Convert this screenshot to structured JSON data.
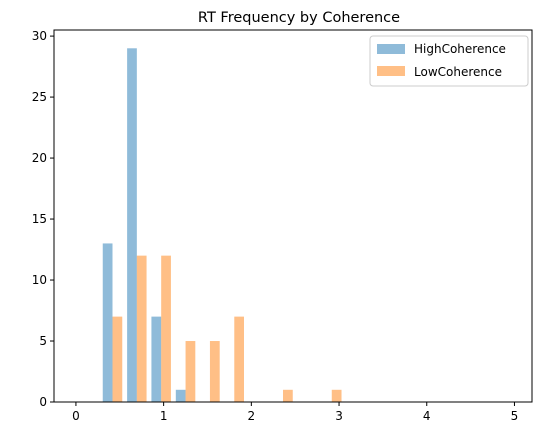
{
  "chart_data": {
    "type": "bar",
    "title": "RT Frequency by Coherence",
    "xlabel": "",
    "ylabel": "",
    "xlim": [
      -0.25,
      5.2
    ],
    "ylim": [
      0,
      30.5
    ],
    "xticks": [
      0,
      1,
      2,
      3,
      4,
      5
    ],
    "yticks": [
      0,
      5,
      10,
      15,
      20,
      25,
      30
    ],
    "bin_edges": [
      0.0,
      0.278,
      0.556,
      0.833,
      1.111,
      1.389,
      1.667,
      1.944,
      2.222,
      2.5,
      2.778,
      3.056,
      3.333,
      3.611,
      3.889,
      4.167,
      4.444,
      4.722,
      5.0
    ],
    "series": [
      {
        "name": "HighCoherence",
        "color": "#1f77b4",
        "values": [
          0,
          13,
          29,
          7,
          1,
          0,
          0,
          0,
          0,
          0,
          0,
          0,
          0,
          0,
          0,
          0,
          0,
          0
        ]
      },
      {
        "name": "LowCoherence",
        "color": "#ff7f0e",
        "values": [
          0,
          7,
          12,
          12,
          5,
          5,
          7,
          0,
          1,
          0,
          1,
          0,
          0,
          0,
          0,
          0,
          0,
          0
        ]
      }
    ],
    "legend": "top-right",
    "grid": false
  }
}
